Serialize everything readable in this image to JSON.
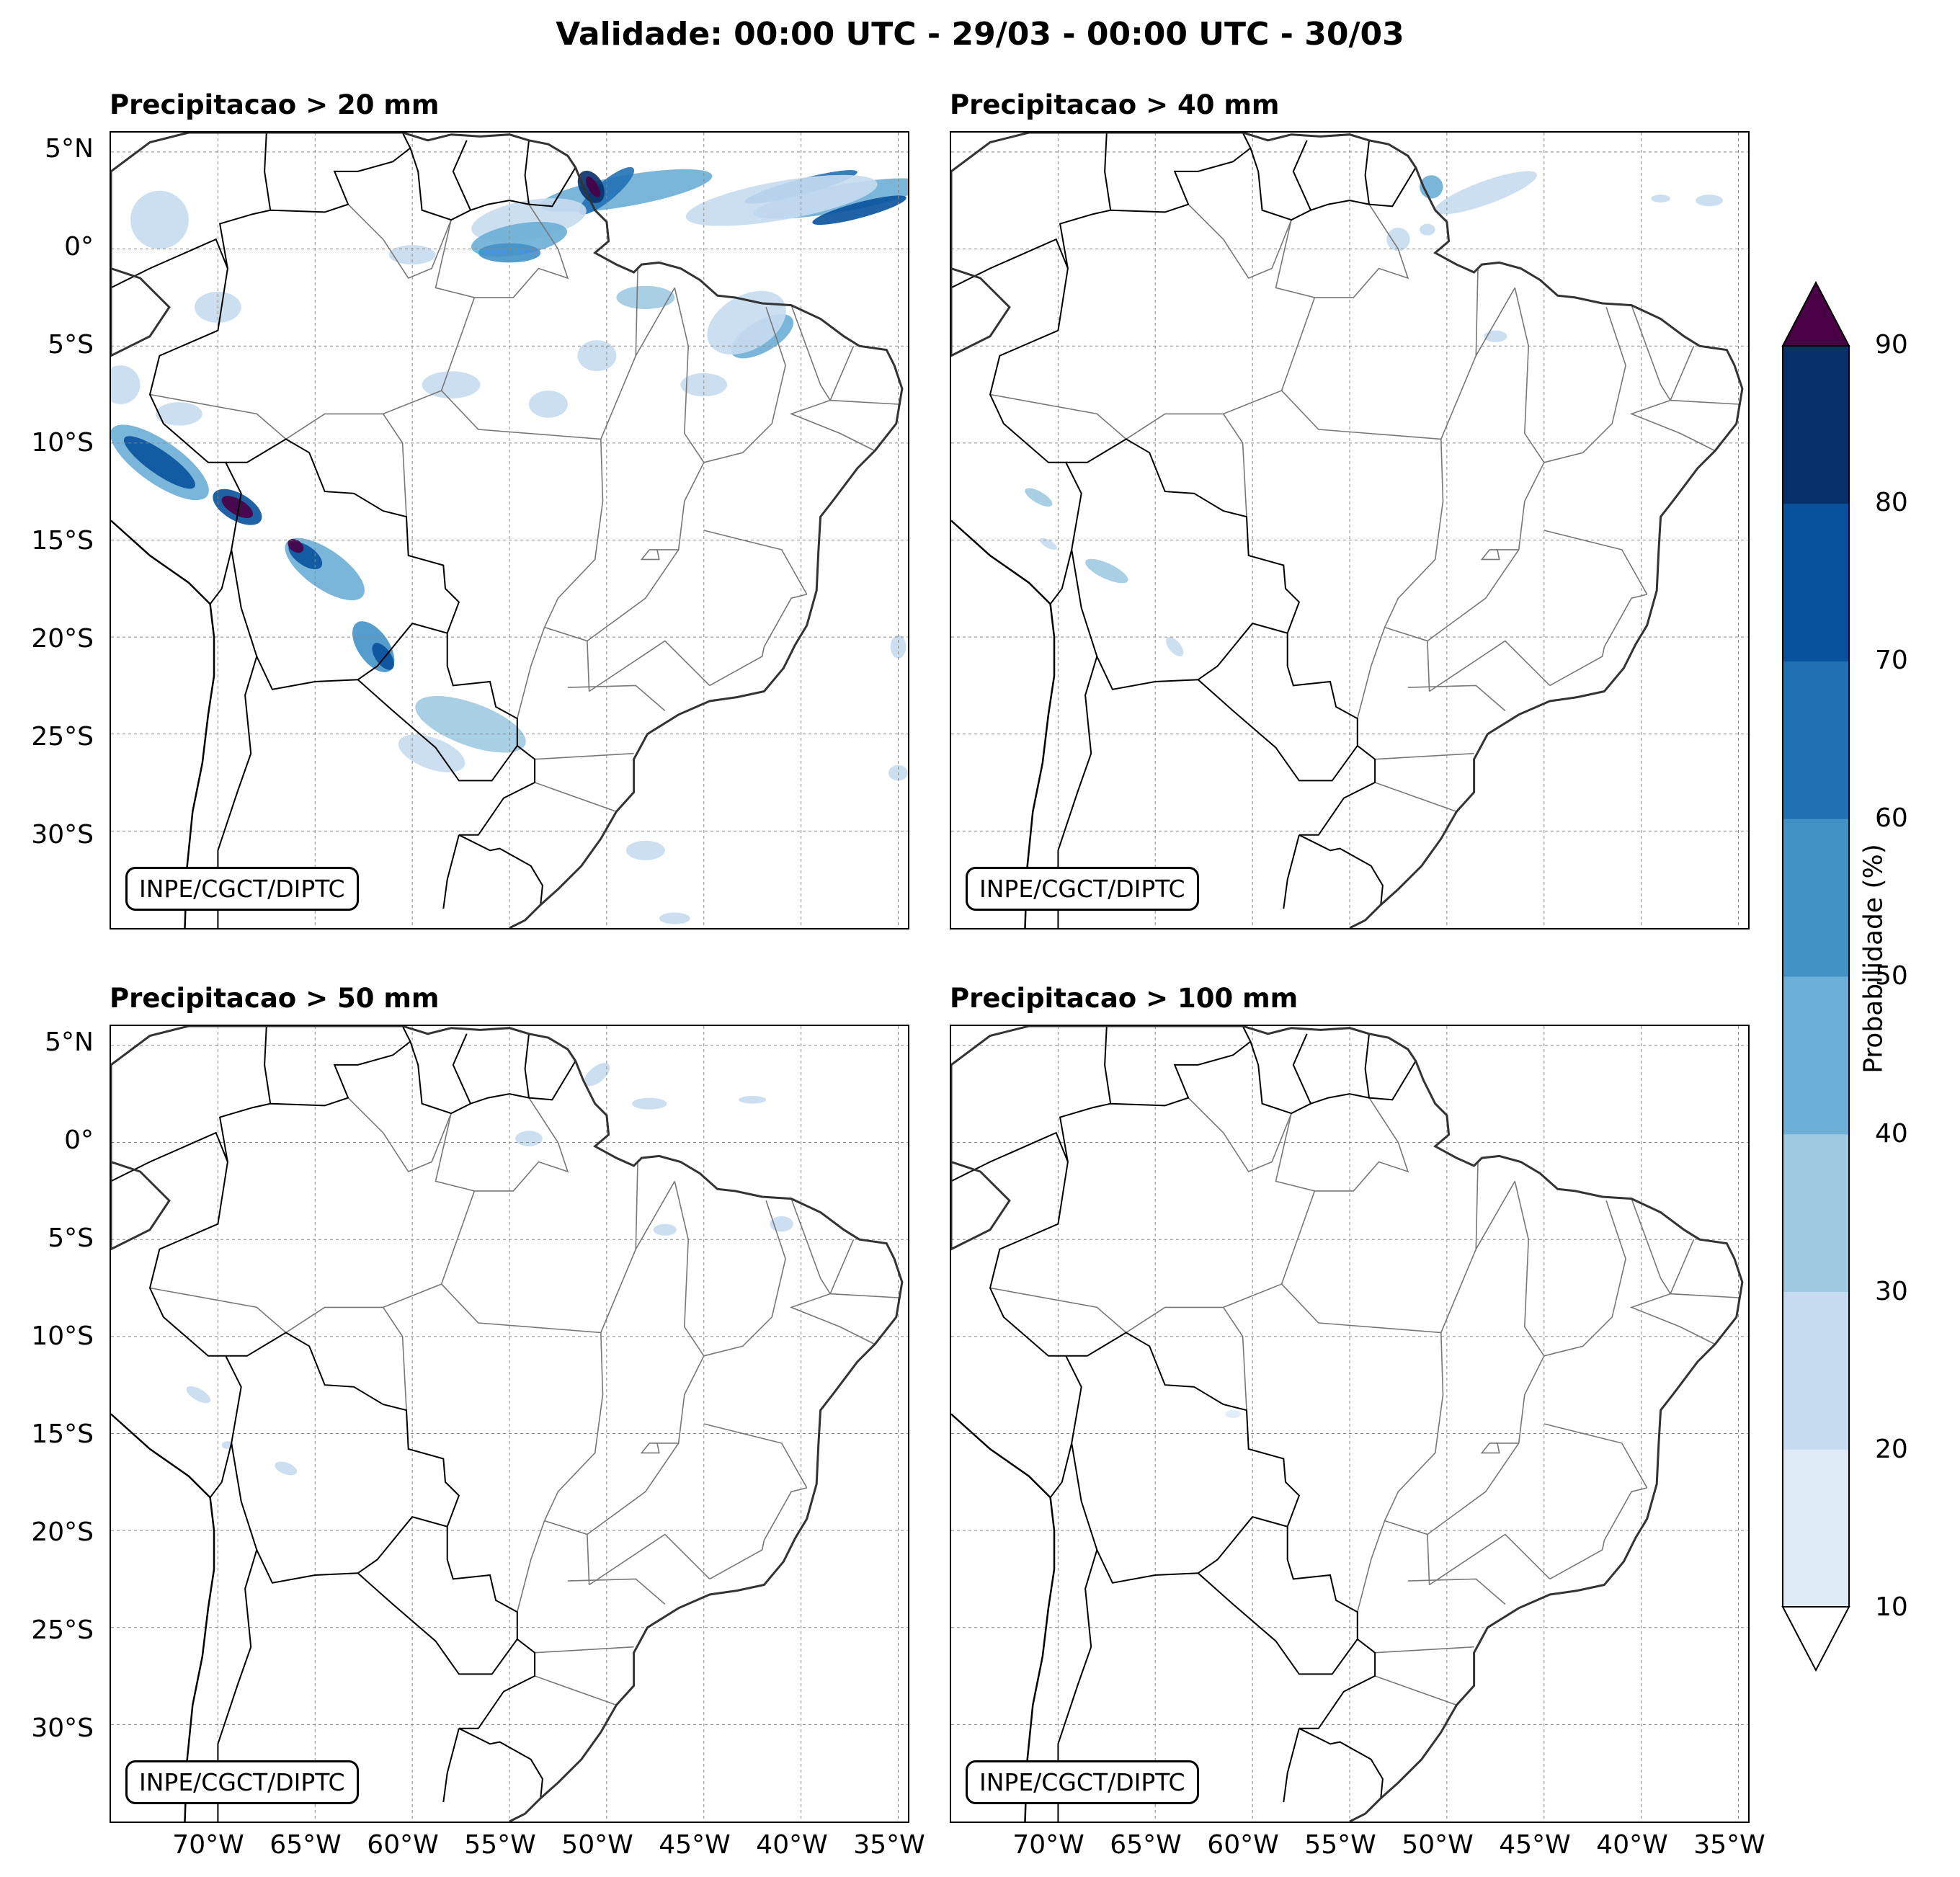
{
  "title": "Validade: 00:00 UTC - 29/03 - 00:00 UTC - 30/03",
  "panels": [
    {
      "title": "Precipitacao > 20 mm",
      "credit": "INPE/CGCT/DIPTC"
    },
    {
      "title": "Precipitacao > 40 mm",
      "credit": "INPE/CGCT/DIPTC"
    },
    {
      "title": "Precipitacao > 50 mm",
      "credit": "INPE/CGCT/DIPTC"
    },
    {
      "title": "Precipitacao > 100 mm",
      "credit": "INPE/CGCT/DIPTC"
    }
  ],
  "lat_ticks": [
    "5°N",
    "0°",
    "5°S",
    "10°S",
    "15°S",
    "20°S",
    "25°S",
    "30°S"
  ],
  "lon_ticks": [
    "70°W",
    "65°W",
    "60°W",
    "55°W",
    "50°W",
    "45°W",
    "40°W",
    "35°W"
  ],
  "colorbar": {
    "label": "Probabilidade (%)",
    "ticks": [
      "10",
      "20",
      "30",
      "40",
      "50",
      "60",
      "70",
      "80",
      "90"
    ],
    "colors": [
      "#deebf7",
      "#c6dbef",
      "#9ecae1",
      "#6baed6",
      "#4292c6",
      "#2171b5",
      "#08519c",
      "#08306b"
    ],
    "over_color": "#4a0045",
    "under_color": "#ffffff"
  }
}
